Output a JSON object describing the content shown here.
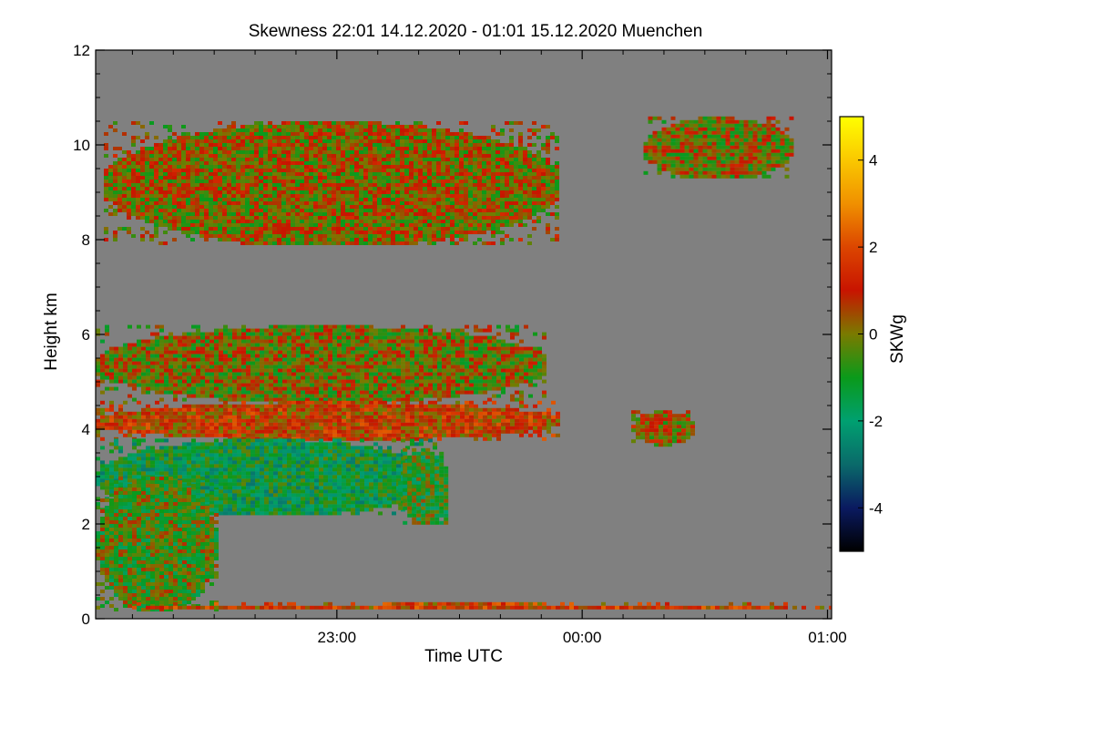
{
  "chart_data": {
    "type": "heatmap",
    "title": "Skewness   22:01 14.12.2020 - 01:01 15.12.2020 Muenchen",
    "xlabel": "Time UTC",
    "ylabel": "Height km",
    "x_range_hours": [
      22.0167,
      25.0167
    ],
    "x_ticks": [
      {
        "value": 23.0,
        "label": "23:00"
      },
      {
        "value": 24.0,
        "label": "00:00"
      },
      {
        "value": 25.0,
        "label": "01:00"
      }
    ],
    "ylim": [
      0,
      12
    ],
    "y_ticks": [
      {
        "value": 0,
        "label": "0"
      },
      {
        "value": 2,
        "label": "2"
      },
      {
        "value": 4,
        "label": "4"
      },
      {
        "value": 6,
        "label": "6"
      },
      {
        "value": 8,
        "label": "8"
      },
      {
        "value": 10,
        "label": "10"
      },
      {
        "value": 12,
        "label": "12"
      }
    ],
    "background_color": "#808080",
    "colorbar": {
      "label": "SKWg",
      "range": [
        -5,
        5
      ],
      "ticks": [
        {
          "value": 4,
          "label": "4"
        },
        {
          "value": 2,
          "label": "2"
        },
        {
          "value": 0,
          "label": "0"
        },
        {
          "value": -2,
          "label": "-2"
        },
        {
          "value": -4,
          "label": "-4"
        }
      ],
      "stops": [
        {
          "value": -5,
          "color": "#000000"
        },
        {
          "value": -4,
          "color": "#0a1a60"
        },
        {
          "value": -3,
          "color": "#0a6a6a"
        },
        {
          "value": -2,
          "color": "#00a070"
        },
        {
          "value": -1,
          "color": "#0a9a1a"
        },
        {
          "value": 0,
          "color": "#7a7a00"
        },
        {
          "value": 1,
          "color": "#c81400"
        },
        {
          "value": 2,
          "color": "#dc4600"
        },
        {
          "value": 3,
          "color": "#f09000"
        },
        {
          "value": 4,
          "color": "#fac800"
        },
        {
          "value": 5,
          "color": "#ffff00"
        }
      ]
    },
    "regions": [
      {
        "name": "upper-cloud-layer",
        "t_start": 22.05,
        "t_end": 23.9,
        "h_bottom": 7.9,
        "h_top": 10.5,
        "skewness_mean": 0.2
      },
      {
        "name": "upper-cloud-east",
        "t_start": 24.25,
        "t_end": 24.85,
        "h_bottom": 9.3,
        "h_top": 10.6,
        "skewness_mean": 0.1
      },
      {
        "name": "mid-cloud-top",
        "t_start": 22.0167,
        "t_end": 23.85,
        "h_bottom": 4.6,
        "h_top": 6.2,
        "skewness_mean": 0.0
      },
      {
        "name": "mid-cloud-core",
        "t_start": 22.0167,
        "t_end": 23.9,
        "h_bottom": 3.8,
        "h_top": 4.6,
        "skewness_mean": 1.0
      },
      {
        "name": "mid-cloud-base",
        "t_start": 22.0167,
        "t_end": 23.4,
        "h_bottom": 2.2,
        "h_top": 3.8,
        "skewness_mean": -1.5
      },
      {
        "name": "fall-streaks-west",
        "t_start": 22.0167,
        "t_end": 22.5,
        "h_bottom": 0.2,
        "h_top": 3.0,
        "skewness_mean": -0.5
      },
      {
        "name": "fall-streaks-mid",
        "t_start": 23.25,
        "t_end": 23.45,
        "h_bottom": 2.0,
        "h_top": 3.6,
        "skewness_mean": -0.8
      },
      {
        "name": "small-cloud-east",
        "t_start": 24.2,
        "t_end": 24.45,
        "h_bottom": 3.7,
        "h_top": 4.4,
        "skewness_mean": 0.3
      },
      {
        "name": "near-surface-band",
        "t_start": 22.0167,
        "t_end": 25.0167,
        "h_bottom": 0.25,
        "h_top": 0.35,
        "skewness_mean": 1.2
      }
    ]
  }
}
